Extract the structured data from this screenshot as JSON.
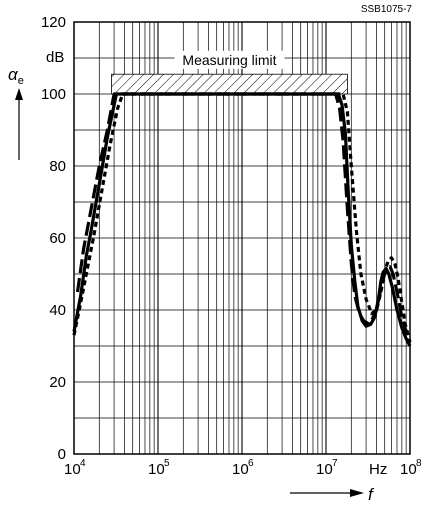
{
  "figure_code": "SSB1075-7",
  "chart_data": {
    "type": "line",
    "x_scale": "log",
    "y_scale": "linear",
    "xlim": [
      10000,
      100000000
    ],
    "ylim": [
      0,
      120
    ],
    "grid": true,
    "x_ticks": [
      {
        "base": "10",
        "exp": "4"
      },
      {
        "base": "10",
        "exp": "5"
      },
      {
        "base": "10",
        "exp": "6"
      },
      {
        "base": "10",
        "exp": "7"
      },
      {
        "base": "10",
        "exp": "8"
      }
    ],
    "x_unit": "Hz",
    "x_symbol": "f",
    "y_ticks": [
      "0",
      "20",
      "40",
      "60",
      "80",
      "100",
      "120"
    ],
    "y_unit": "dB",
    "y_symbol": "α",
    "y_symbol_sub": "e",
    "annotation": {
      "text": "Measuring limit",
      "value": 100,
      "x_range": [
        28000,
        18000000
      ]
    },
    "series": [
      {
        "style": "solid",
        "x": [
          10000,
          12000,
          14000,
          16000,
          20000,
          25000,
          32000,
          35000,
          14000000,
          15500000,
          17000000,
          18500000,
          20000000,
          22000000,
          24000000,
          27000000,
          30000000,
          34000000,
          38000000,
          42000000,
          45000000,
          48000000,
          52000000,
          56000000,
          62000000,
          70000000,
          80000000,
          90000000,
          100000000
        ],
        "y": [
          34,
          44,
          55,
          62,
          75,
          88,
          100,
          100,
          100,
          97,
          89,
          72,
          58,
          48,
          41,
          37,
          35.5,
          36,
          38,
          43,
          48,
          50.5,
          51.5,
          50,
          46,
          40,
          35,
          32,
          30
        ]
      },
      {
        "style": "dashed",
        "x": [
          11000,
          13000,
          16000,
          20000,
          25000,
          30000,
          13000000,
          14500000,
          16000000,
          18000000,
          20000000,
          22000000,
          25000000,
          28000000,
          33000000,
          40000000,
          46000000,
          52000000,
          58000000,
          63000000,
          70000000,
          80000000,
          90000000,
          100000000
        ],
        "y": [
          45,
          57,
          68,
          80,
          90,
          100,
          100,
          96,
          87,
          68,
          53,
          44,
          39,
          37,
          36,
          40,
          47,
          51.5,
          52,
          50,
          45,
          38,
          34,
          32
        ]
      },
      {
        "style": "dotted",
        "x": [
          10000,
          12000,
          14000,
          17000,
          21000,
          27000,
          33000,
          38000,
          16000000,
          18000000,
          20000000,
          23000000,
          26000000,
          30000000,
          35000000,
          40000000,
          45000000,
          50000000,
          55000000,
          60000000,
          66000000,
          72000000,
          80000000,
          88000000,
          100000000
        ],
        "y": [
          33,
          42,
          50,
          60,
          72,
          86,
          96,
          100,
          100,
          95,
          80,
          62,
          50,
          43,
          39,
          40,
          45,
          51,
          53.5,
          54.5,
          53,
          49,
          42,
          36,
          31
        ]
      }
    ]
  }
}
